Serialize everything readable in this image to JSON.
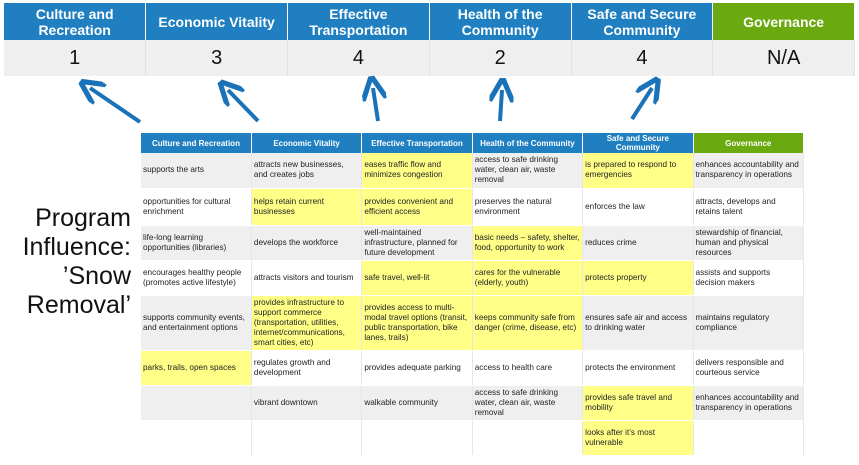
{
  "scores": {
    "headers": [
      "Culture and Recreation",
      "Economic Vitality",
      "Effective Transportation",
      "Health of the Community",
      "Safe and Secure Community",
      "Governance"
    ],
    "values": [
      "1",
      "3",
      "4",
      "2",
      "4",
      "N/A"
    ]
  },
  "program_label": "Program Influence: ’Snow Removal’",
  "colors": {
    "header_blue": "#1f7fc0",
    "governance_green": "#6aaa10",
    "highlight": "#ffff88",
    "arrow": "#1a73b8"
  },
  "matrix": {
    "headers": [
      "Culture and Recreation",
      "Economic Vitality",
      "Effective Transportation",
      "Health of the Community",
      "Safe and Secure Community",
      "Governance"
    ],
    "rows": [
      [
        {
          "t": "supports the arts"
        },
        {
          "t": "attracts new businesses, and creates jobs"
        },
        {
          "t": "eases traffic flow and minimizes congestion",
          "h": true
        },
        {
          "t": "access to safe drinking water, clean air, waste removal"
        },
        {
          "t": "is prepared to respond to emergencies",
          "h": true
        },
        {
          "t": "enhances accountability and transparency in operations"
        }
      ],
      [
        {
          "t": "opportunities for cultural enrichment"
        },
        {
          "t": "helps retain current businesses",
          "h": true
        },
        {
          "t": "provides convenient and efficient access",
          "h": true
        },
        {
          "t": "preserves the natural environment"
        },
        {
          "t": "enforces the law"
        },
        {
          "t": "attracts, develops and retains talent"
        }
      ],
      [
        {
          "t": "life-long learning opportunities (libraries)"
        },
        {
          "t": "develops the workforce"
        },
        {
          "t": "well-maintained infrastructure, planned for future development"
        },
        {
          "t": "basic needs – safety, shelter, food, opportunity to work",
          "h": true
        },
        {
          "t": "reduces crime"
        },
        {
          "t": "stewardship of financial, human and physical resources"
        }
      ],
      [
        {
          "t": "encourages healthy people (promotes active lifestyle)"
        },
        {
          "t": "attracts visitors and tourism"
        },
        {
          "t": "safe travel, well-lit",
          "h": true
        },
        {
          "t": "cares for the vulnerable (elderly, youth)",
          "h": true
        },
        {
          "t": "protects property",
          "h": true
        },
        {
          "t": "assists and supports decision makers"
        }
      ],
      [
        {
          "t": "supports community events, and entertainment options"
        },
        {
          "t": "provides infrastructure to support commerce (transportation, utilities, internet/communications, smart cities, etc)",
          "h": true
        },
        {
          "t": "provides access to multi-modal travel options (transit, public transportation, bike lanes, trails)",
          "h": true
        },
        {
          "t": "keeps community safe from danger (crime, disease, etc)",
          "h": true
        },
        {
          "t": "ensures safe air and access to drinking water"
        },
        {
          "t": "maintains regulatory compliance"
        }
      ],
      [
        {
          "t": "parks, trails, open spaces",
          "h": true
        },
        {
          "t": "regulates growth and development"
        },
        {
          "t": "provides adequate parking"
        },
        {
          "t": "access to health care"
        },
        {
          "t": "protects the environment"
        },
        {
          "t": "delivers responsible and courteous service"
        }
      ],
      [
        {
          "t": ""
        },
        {
          "t": "vibrant downtown"
        },
        {
          "t": "walkable community"
        },
        {
          "t": "access to safe drinking water, clean air, waste removal"
        },
        {
          "t": "provides safe travel and mobility",
          "h": true
        },
        {
          "t": "enhances accountability and transparency in operations"
        }
      ],
      [
        {
          "t": ""
        },
        {
          "t": ""
        },
        {
          "t": ""
        },
        {
          "t": ""
        },
        {
          "t": "looks after it’s most vulnerable",
          "h": true
        },
        {
          "t": ""
        }
      ]
    ]
  }
}
